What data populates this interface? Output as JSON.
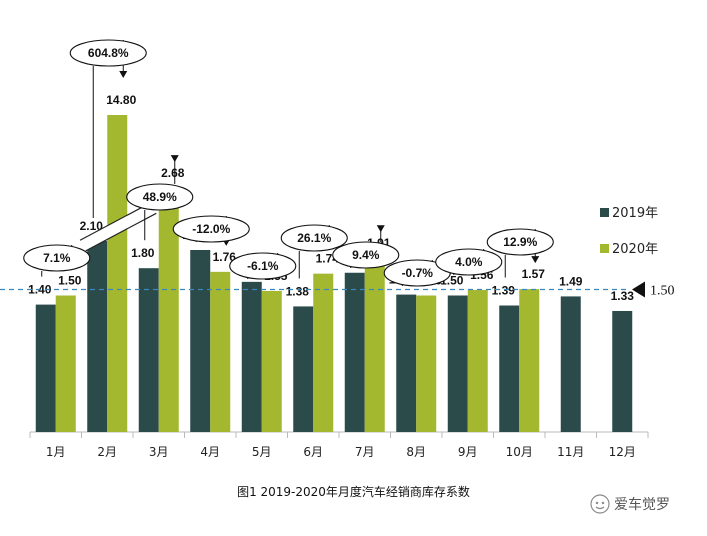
{
  "chart_data": {
    "type": "bar",
    "categories": [
      "1月",
      "2月",
      "3月",
      "4月",
      "5月",
      "6月",
      "7月",
      "8月",
      "9月",
      "10月",
      "11月",
      "12月"
    ],
    "series": [
      {
        "name": "2019年",
        "color": "#2b4a4a",
        "values": [
          1.4,
          2.1,
          1.8,
          2.0,
          1.65,
          1.38,
          1.75,
          1.51,
          1.5,
          1.39,
          1.49,
          1.33
        ]
      },
      {
        "name": "2020年",
        "color": "#a3b82f",
        "values": [
          1.5,
          14.8,
          2.68,
          1.76,
          1.55,
          1.74,
          1.91,
          1.5,
          1.56,
          1.57,
          null,
          null
        ]
      }
    ],
    "changes": [
      "7.1%",
      "604.8%",
      "48.9%",
      "-12.0%",
      "-6.1%",
      "26.1%",
      "9.4%",
      "-0.7%",
      "4.0%",
      "12.9%",
      null,
      null
    ],
    "reference_line": {
      "value": 1.5,
      "label": "1.50",
      "color": "#3a86c0"
    },
    "axis_break": true,
    "title": "图1  2019-2020年月度汽车经销商库存系数",
    "legend_position": "right"
  },
  "watermark": {
    "text": "爱车觉罗"
  }
}
